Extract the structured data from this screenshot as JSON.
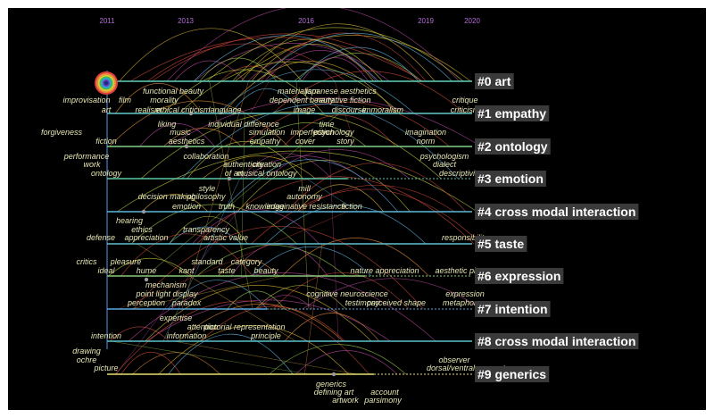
{
  "years": [
    "2011",
    "2013",
    "2016",
    "2019",
    "2020"
  ],
  "clusters": [
    {
      "label": "#0 art",
      "color": "#5fd0b8"
    },
    {
      "label": "#1 empathy",
      "color": "#64c8c8"
    },
    {
      "label": "#2 ontology",
      "color": "#7fd08a"
    },
    {
      "label": "#3 emotion",
      "color": "#5ec8a8"
    },
    {
      "label": "#4 cross modal interaction",
      "color": "#5cb8d8"
    },
    {
      "label": "#5 taste",
      "color": "#62c0d0"
    },
    {
      "label": "#6 expression",
      "color": "#8cc87a"
    },
    {
      "label": "#7 intention",
      "color": "#5aa8e0"
    },
    {
      "label": "#8 cross modal interaction",
      "color": "#5cc0c8"
    },
    {
      "label": "#9 generics",
      "color": "#e8e070"
    }
  ],
  "keywords": [
    "functional beauty",
    "morality",
    "improvisation",
    "film",
    "art",
    "realism",
    "ethical criticism",
    "language",
    "materialism",
    "japanese aesthetics",
    "dependent beauty",
    "narrative fiction",
    "image",
    "discourse",
    "immoralism",
    "critique",
    "criticism",
    "liking",
    "individual difference",
    "time",
    "forgiveness",
    "music",
    "simulation",
    "imperfection",
    "psychology",
    "imagination",
    "fiction",
    "aesthetics",
    "empathy",
    "cover",
    "story",
    "norm",
    "performance",
    "collaboration",
    "psychologism",
    "work",
    "authenticity",
    "creation",
    "dialect",
    "ontology",
    "of art",
    "musical ontology",
    "descriptivism",
    "style",
    "mill",
    "decision making",
    "philosophy",
    "autonomy",
    "emotion",
    "truth",
    "knowledge",
    "imaginative resistance",
    "fiction",
    "hearing",
    "ethics",
    "transparency",
    "responsibility",
    "defense",
    "appreciation",
    "artistic value",
    "critics",
    "pleasure",
    "standard",
    "category",
    "ideal",
    "hume",
    "kant",
    "taste",
    "beauty",
    "nature appreciation",
    "aesthetic pleasure",
    "mechanism",
    "cognitive neuroscience",
    "expression",
    "point light display",
    "testimony",
    "perceived shape",
    "perception",
    "paradox",
    "metaphor",
    "expertise",
    "attention",
    "pictorial representation",
    "information",
    "principle",
    "intention",
    "drawing",
    "observer",
    "ochre",
    "dorsal/ventral account",
    "picture",
    "generics",
    "defining art",
    "account",
    "artwork",
    "parsimony"
  ]
}
